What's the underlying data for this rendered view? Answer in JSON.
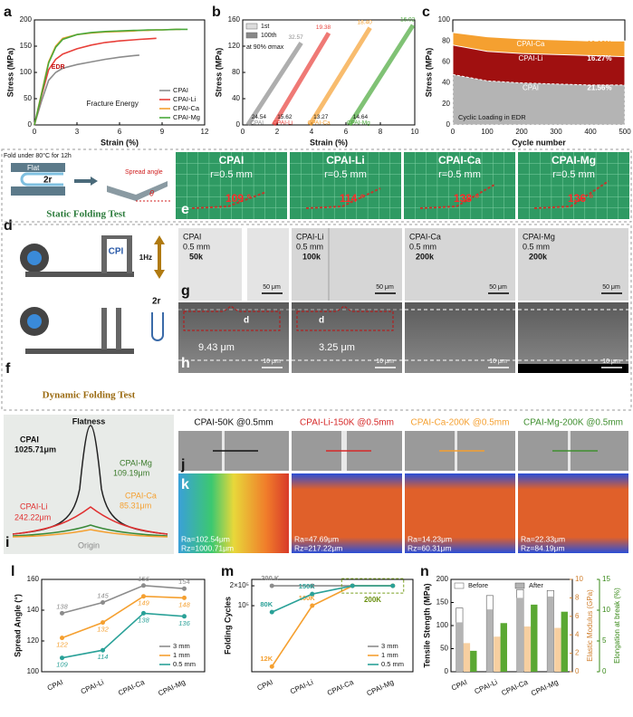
{
  "chart_data": [
    {
      "type": "line",
      "panel": "a",
      "x_label": "Strain (%)",
      "y_label": "Stress (MPa)",
      "xlim": [
        0,
        12
      ],
      "xticks": [
        0,
        3,
        6,
        9,
        12
      ],
      "ylim": [
        0,
        200
      ],
      "yticks": [
        0,
        50,
        100,
        150,
        200
      ],
      "legend": "lower right",
      "annotations": [
        "EDR",
        "Fracture Energy"
      ],
      "x": [
        0,
        0.5,
        1,
        1.5,
        2,
        3,
        4,
        5,
        6,
        7,
        7.4,
        8,
        8.6,
        9,
        10,
        10.3,
        10.8
      ],
      "series": [
        {
          "name": "CPAI",
          "color": "#8c8c8c",
          "values": [
            0,
            45,
            85,
            100,
            108,
            115,
            120,
            125,
            129,
            132,
            133,
            null,
            null,
            null,
            null,
            null,
            null
          ]
        },
        {
          "name": "CPAI-Li",
          "color": "#e8403a",
          "values": [
            0,
            55,
            105,
            125,
            135,
            145,
            152,
            157,
            160,
            162,
            163,
            164,
            165,
            null,
            null,
            null,
            null
          ]
        },
        {
          "name": "CPAI-Ca",
          "color": "#f5a030",
          "values": [
            0,
            60,
            120,
            150,
            165,
            172,
            175,
            177,
            178,
            179,
            180,
            180,
            181,
            181,
            182,
            182,
            null
          ]
        },
        {
          "name": "CPAI-Mg",
          "color": "#4aa83a",
          "values": [
            0,
            58,
            118,
            148,
            163,
            172,
            176,
            178,
            179,
            180,
            180,
            181,
            181,
            181,
            182,
            182,
            182
          ]
        }
      ]
    },
    {
      "type": "line",
      "panel": "b",
      "x_label": "Strain (%)",
      "y_label": "Stress (MPa)",
      "xlim": [
        0,
        10
      ],
      "xticks": [
        0,
        2,
        4,
        6,
        8,
        10
      ],
      "ylim": [
        0,
        160
      ],
      "yticks": [
        0,
        40,
        80,
        120,
        160
      ],
      "legend_labels": [
        "1st",
        "100th"
      ],
      "legend_note": "at 90% σmax",
      "series": [
        {
          "name": "CPAI",
          "color": "#8c8c8c",
          "x": [
            0.3,
            3.4
          ],
          "values": [
            0,
            125
          ],
          "loop_labels": [
            "24.54",
            "32.57"
          ]
        },
        {
          "name": "CPAI-Li",
          "color": "#e8403a",
          "x": [
            1.8,
            5.0
          ],
          "values": [
            0,
            140
          ],
          "loop_labels": [
            "15.62",
            "19.38"
          ]
        },
        {
          "name": "CPAI-Ca",
          "color": "#f5a030",
          "x": [
            3.9,
            7.4
          ],
          "values": [
            0,
            148
          ],
          "loop_labels": [
            "13.27",
            "18.40"
          ]
        },
        {
          "name": "CPAI-Mg",
          "color": "#4aa83a",
          "x": [
            6.2,
            9.9
          ],
          "values": [
            0,
            152
          ],
          "loop_labels": [
            "14.64",
            "16.02"
          ]
        }
      ]
    },
    {
      "type": "area",
      "panel": "c",
      "x_label": "Cycle number",
      "y_label": "Stress (MPa)",
      "xlim": [
        0,
        500
      ],
      "xticks": [
        0,
        100,
        200,
        300,
        400,
        500
      ],
      "ylim": [
        0,
        100
      ],
      "yticks": [
        0,
        20,
        40,
        60,
        80,
        100
      ],
      "annotation": "Cyclic Loading in EDR",
      "x": [
        0,
        100,
        200,
        300,
        400,
        500
      ],
      "series": [
        {
          "name": "CPAI-Ca",
          "color": "#f5a030",
          "values": [
            88,
            84,
            82,
            81,
            80,
            80
          ],
          "drop_label": "10.12%"
        },
        {
          "name": "CPAI-Li",
          "color": "#a01010",
          "values": [
            76,
            70,
            68,
            67,
            66,
            65
          ],
          "drop_label": "16.27%"
        },
        {
          "name": "CPAI",
          "color": "#b4b4b4",
          "values": [
            48,
            42,
            40,
            39,
            38,
            38
          ],
          "drop_label": "21.56%"
        }
      ]
    },
    {
      "type": "line",
      "panel": "l",
      "y_label": "Spread Angle (°)",
      "categories": [
        "CPAI",
        "CPAI-Li",
        "CPAI-Ca",
        "CPAI-Mg"
      ],
      "ylim": [
        100,
        160
      ],
      "yticks": [
        100,
        120,
        140,
        160
      ],
      "markers": true,
      "data_labels": true,
      "legend": "lower right",
      "series": [
        {
          "name": "3 mm",
          "color": "#8c8c8c",
          "values": [
            138,
            145,
            156,
            154
          ]
        },
        {
          "name": "1 mm",
          "color": "#f5a030",
          "values": [
            122,
            132,
            149,
            148
          ]
        },
        {
          "name": "0.5 mm",
          "color": "#2aa198",
          "values": [
            109,
            114,
            138,
            136
          ]
        }
      ]
    },
    {
      "type": "line",
      "panel": "m",
      "y_label": "Folding Cycles",
      "categories": [
        "CPAI",
        "CPAI-Li",
        "CPAI-Ca",
        "CPAI-Mg"
      ],
      "log_scale": true,
      "ylim": [
        10000,
        250000
      ],
      "yticks": [
        {
          "value": 100000,
          "label": "10⁵"
        },
        {
          "value": 200000,
          "label": "2×10⁵"
        }
      ],
      "markers": true,
      "legend": "lower right",
      "annotation": "200K",
      "series": [
        {
          "name": "3 mm",
          "color": "#8c8c8c",
          "values": [
            200000,
            200000,
            200000,
            200000
          ],
          "value_labels": [
            "200 K",
            null,
            null,
            null
          ]
        },
        {
          "name": "1 mm",
          "color": "#f5a030",
          "values": [
            12000,
            100000,
            200000,
            200000
          ],
          "value_labels": [
            "12K",
            "100K",
            null,
            null
          ]
        },
        {
          "name": "0.5 mm",
          "color": "#2aa198",
          "values": [
            80000,
            150000,
            200000,
            200000
          ],
          "value_labels": [
            "80K",
            "150K",
            null,
            null
          ]
        }
      ]
    },
    {
      "type": "bar",
      "panel": "n",
      "y_label": "Tensile Stength (MPa)",
      "y2_label": "Elastic Modulus (GPa)",
      "y3_label": "Elongation at break (%)",
      "categories": [
        "CPAI",
        "CPAI-Li",
        "CPAI-Ca",
        "CPAI-Mg"
      ],
      "ylim": [
        0,
        200
      ],
      "yticks": [
        0,
        50,
        100,
        150,
        200
      ],
      "y2lim": [
        0,
        10
      ],
      "y2ticks": [
        0,
        2,
        4,
        6,
        8,
        10
      ],
      "y3lim": [
        0,
        15
      ],
      "y3ticks": [
        0,
        5,
        10,
        15
      ],
      "legend": "top",
      "series": [
        {
          "name": "Before",
          "color": "#ffffff",
          "values": [
            138,
            165,
            178,
            176
          ]
        },
        {
          "name": "After",
          "color": "#b4b4b4",
          "values": [
            107,
            135,
            160,
            163
          ]
        },
        {
          "color": "#f7cfa0",
          "axis": "y2",
          "values": [
            3.1,
            3.8,
            4.9,
            4.75
          ]
        },
        {
          "color": "#5aa832",
          "axis": "y3",
          "values": [
            3.4,
            7.9,
            10.9,
            9.75
          ]
        }
      ]
    }
  ],
  "panels": {
    "d": {
      "letter": "d",
      "note": "Fold under 80°C for 12h",
      "flat": "Flat",
      "radius": "2r",
      "spread": "Spread angle",
      "theta": "θ",
      "title": "Static Folding Test"
    },
    "e": {
      "letter": "e",
      "images": [
        {
          "sample": "CPAI",
          "radius": "r=0.5 mm",
          "angle": "109 °"
        },
        {
          "sample": "CPAI-Li",
          "radius": "r=0.5 mm",
          "angle": "114 °"
        },
        {
          "sample": "CPAI-Ca",
          "radius": "r=0.5 mm",
          "angle": "138 °"
        },
        {
          "sample": "CPAI-Mg",
          "radius": "r=0.5 mm",
          "angle": "136 °"
        }
      ]
    },
    "f": {
      "letter": "f",
      "cpi": "CPI",
      "freq": "1Hz",
      "radius": "2r",
      "title": "Dynamic Folding Test"
    },
    "g": {
      "letter": "g",
      "scale": "50 μm",
      "images": [
        {
          "sample": "CPAI",
          "radius": "0.5 mm",
          "cycles": "50k"
        },
        {
          "sample": "CPAI-Li",
          "radius": "0.5 mm",
          "cycles": "100k"
        },
        {
          "sample": "CPAI-Ca",
          "radius": "0.5 mm",
          "cycles": "200k"
        },
        {
          "sample": "CPAI-Mg",
          "radius": "0.5 mm",
          "cycles": "200k"
        }
      ]
    },
    "h": {
      "letter": "h",
      "scale": "10 μm",
      "d": "d",
      "depths": [
        "9.43 μm",
        "3.25 μm"
      ]
    },
    "i": {
      "letter": "i",
      "title": "Flatness",
      "origin": "Origin",
      "labels": [
        {
          "name": "CPAI",
          "value": "1025.71μm"
        },
        {
          "name": "CPAI-Mg",
          "value": "109.19μm"
        },
        {
          "name": "CPAI-Ca",
          "value": "85.31μm"
        },
        {
          "name": "CPAI-Li",
          "value": "242.22μm"
        }
      ]
    },
    "j": {
      "letter": "j",
      "images": [
        "CPAI-50K @0.5mm",
        "CPAI-Li-150K @0.5mm",
        "CPAI-Ca-200K @0.5mm",
        "CPAI-Mg-200K @0.5mm"
      ]
    },
    "k": {
      "letter": "k",
      "images": [
        {
          "ra": "Ra=102.54μm",
          "rz": "Rz=1000.71μm"
        },
        {
          "ra": "Ra=47.69μm",
          "rz": "Rz=217.22μm"
        },
        {
          "ra": "Ra=14.23μm",
          "rz": "Rz=60.31μm"
        },
        {
          "ra": "Ra=22.33μm",
          "rz": "Rz=84.19μm"
        }
      ]
    }
  }
}
